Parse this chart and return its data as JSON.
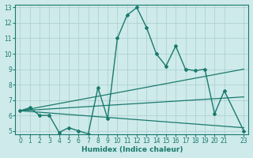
{
  "xlabel": "Humidex (Indice chaleur)",
  "background_color": "#ceeaea",
  "grid_color": "#aacece",
  "line_color": "#1a7a6e",
  "xlim": [
    -0.5,
    23.5
  ],
  "ylim": [
    4.8,
    13.2
  ],
  "xticks": [
    0,
    1,
    2,
    3,
    4,
    5,
    6,
    7,
    8,
    9,
    10,
    11,
    12,
    13,
    14,
    15,
    16,
    17,
    18,
    19,
    20,
    21,
    23
  ],
  "yticks": [
    5,
    6,
    7,
    8,
    9,
    10,
    11,
    12,
    13
  ],
  "main_series": {
    "x": [
      0,
      1,
      2,
      3,
      4,
      5,
      6,
      7,
      8,
      9,
      10,
      11,
      12,
      13,
      14,
      15,
      16,
      17,
      18,
      19,
      20,
      21,
      23
    ],
    "y": [
      6.3,
      6.5,
      6.0,
      6.0,
      4.9,
      5.2,
      5.0,
      4.8,
      7.8,
      5.8,
      11.0,
      12.5,
      13.0,
      11.7,
      10.0,
      9.2,
      10.5,
      9.0,
      8.9,
      9.0,
      6.1,
      7.6,
      5.0
    ]
  },
  "ref_lines": [
    {
      "x": [
        0,
        23
      ],
      "y": [
        6.3,
        9.0
      ]
    },
    {
      "x": [
        0,
        23
      ],
      "y": [
        6.3,
        7.2
      ]
    },
    {
      "x": [
        0,
        23
      ],
      "y": [
        6.3,
        5.2
      ]
    }
  ]
}
